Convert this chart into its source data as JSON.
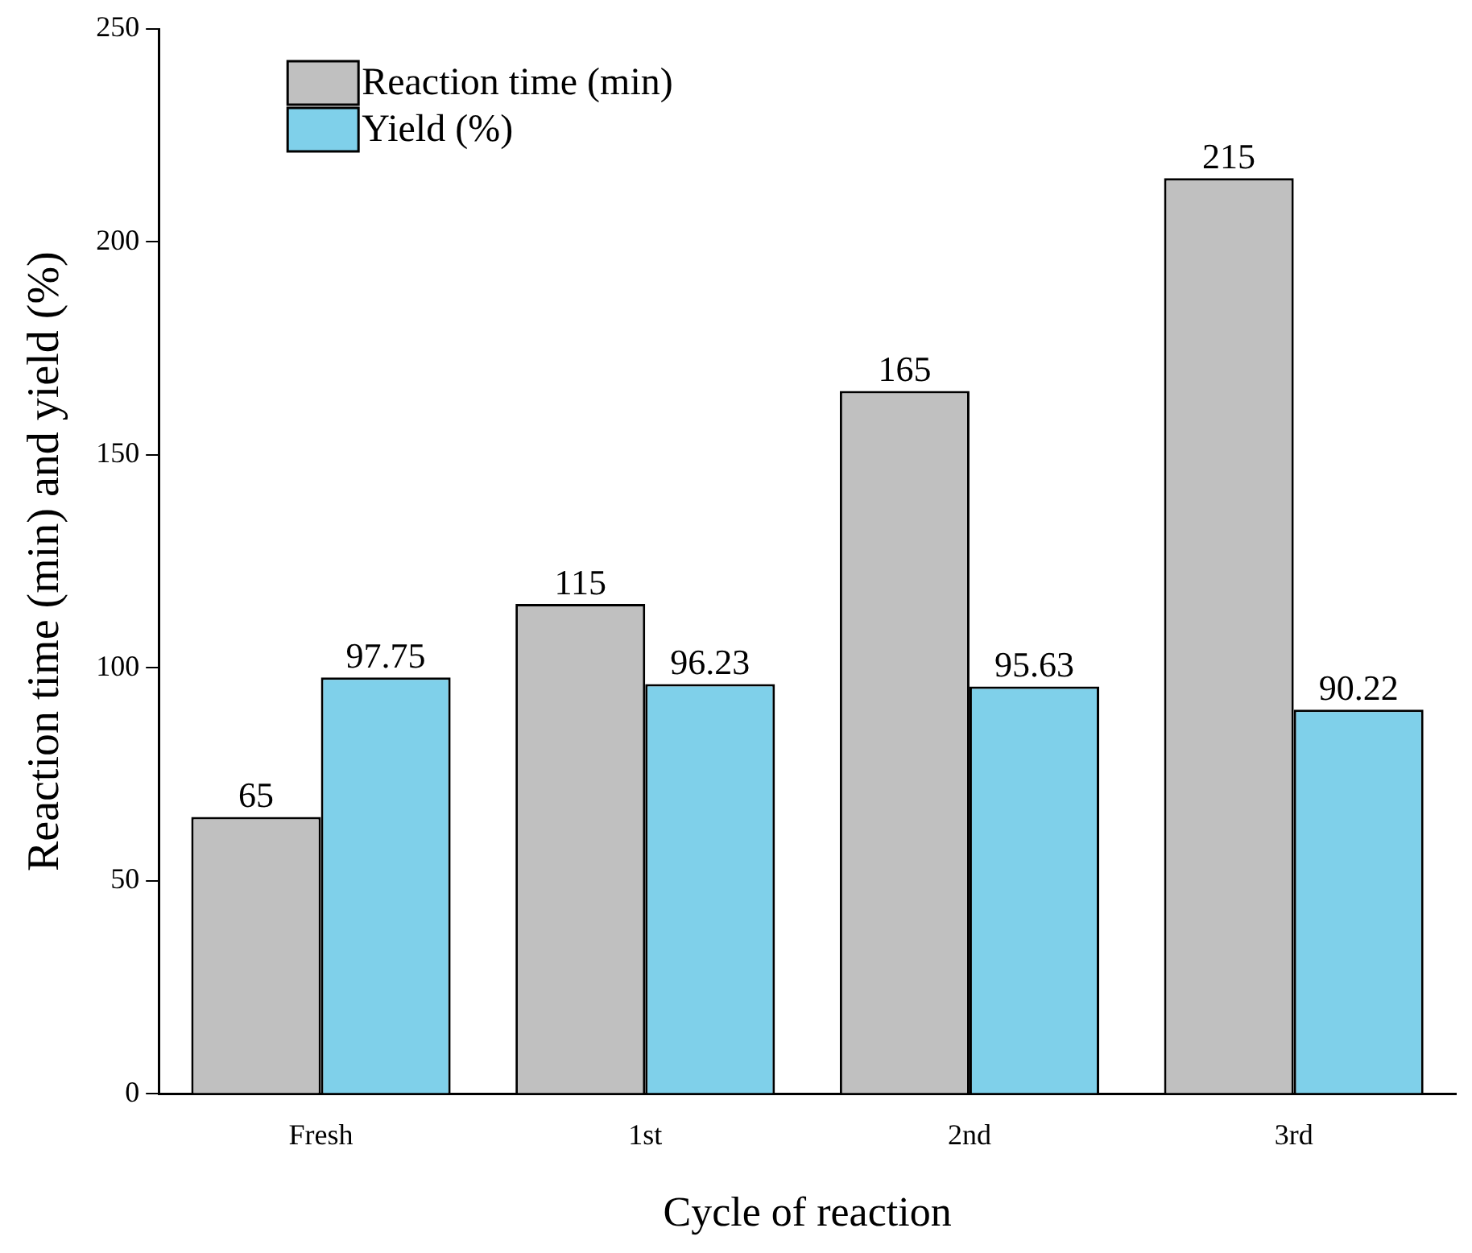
{
  "chart_data": {
    "type": "bar",
    "xlabel": "Cycle of reaction",
    "ylabel": "Reaction time (min) and yield (%)",
    "categories": [
      "Fresh",
      "1st",
      "2nd",
      "3rd"
    ],
    "series": [
      {
        "name": "Reaction time (min)",
        "color": "#c0c0c0",
        "values": [
          65,
          115,
          165,
          215
        ]
      },
      {
        "name": "Yield (%)",
        "color": "#7fd0ea",
        "values": [
          97.75,
          96.23,
          95.63,
          90.22
        ]
      }
    ],
    "ylim": [
      0,
      250
    ],
    "yticks": [
      0,
      50,
      100,
      150,
      200,
      250
    ],
    "grid": false,
    "legend": "top left",
    "data_labels": true
  }
}
